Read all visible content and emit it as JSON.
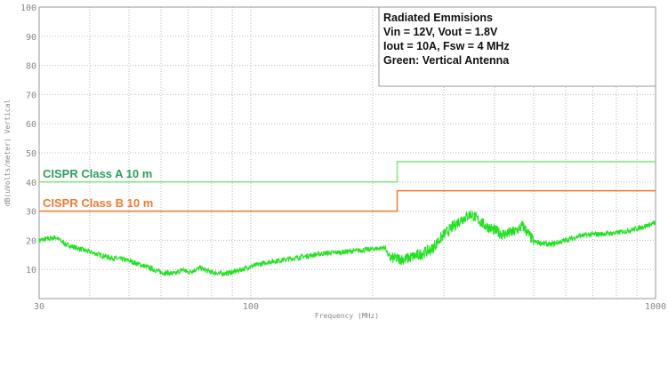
{
  "chart_data": {
    "type": "line",
    "title": "",
    "xlabel": "Frequency (MHz)",
    "ylabel": "dB(uVolts/meter) Vertical",
    "xscale": "log",
    "xlim": [
      30,
      1000
    ],
    "ylim": [
      0,
      100
    ],
    "x_ticks": [
      "30",
      "100",
      "1000"
    ],
    "y_ticks": [
      "10",
      "20",
      "30",
      "40",
      "50",
      "60",
      "70",
      "80",
      "90",
      "100"
    ],
    "grid": true,
    "annotation_box": {
      "lines": [
        "Radiated Emmisions",
        "Vin = 12V, Vout = 1.8V",
        "Iout = 10A, Fsw = 4 MHz",
        "Green: Vertical Antenna"
      ],
      "placement": "top-right"
    },
    "limits": [
      {
        "name": "CISPR Class A  10 m",
        "color": "#7ee87e",
        "points": [
          [
            30,
            40
          ],
          [
            230,
            40
          ],
          [
            230,
            47
          ],
          [
            1000,
            47
          ]
        ]
      },
      {
        "name": "CISPR Class B  10 m",
        "color": "#f07a30",
        "points": [
          [
            30,
            30
          ],
          [
            230,
            30
          ],
          [
            230,
            37
          ],
          [
            1000,
            37
          ]
        ]
      }
    ],
    "series": [
      {
        "color": "#22e022",
        "points": [
          [
            30,
            20
          ],
          [
            33,
            21
          ],
          [
            35,
            18.5
          ],
          [
            40,
            16
          ],
          [
            45,
            14
          ],
          [
            48,
            13.5
          ],
          [
            50,
            13
          ],
          [
            55,
            11
          ],
          [
            60,
            9
          ],
          [
            65,
            8.5
          ],
          [
            68,
            10
          ],
          [
            70,
            9
          ],
          [
            75,
            10.5
          ],
          [
            80,
            9
          ],
          [
            85,
            8.5
          ],
          [
            90,
            9
          ],
          [
            100,
            11
          ],
          [
            110,
            12.5
          ],
          [
            130,
            14
          ],
          [
            150,
            15.5
          ],
          [
            170,
            16
          ],
          [
            200,
            17
          ],
          [
            215,
            17.5
          ],
          [
            220,
            14
          ],
          [
            240,
            13.5
          ],
          [
            260,
            15
          ],
          [
            280,
            17
          ],
          [
            300,
            22
          ],
          [
            330,
            27
          ],
          [
            350,
            29
          ],
          [
            380,
            25
          ],
          [
            420,
            22
          ],
          [
            450,
            23
          ],
          [
            470,
            25
          ],
          [
            500,
            19.5
          ],
          [
            550,
            18.5
          ],
          [
            600,
            20
          ],
          [
            650,
            21.5
          ],
          [
            700,
            22
          ],
          [
            800,
            22.5
          ],
          [
            900,
            24
          ],
          [
            1000,
            26
          ]
        ]
      }
    ]
  }
}
